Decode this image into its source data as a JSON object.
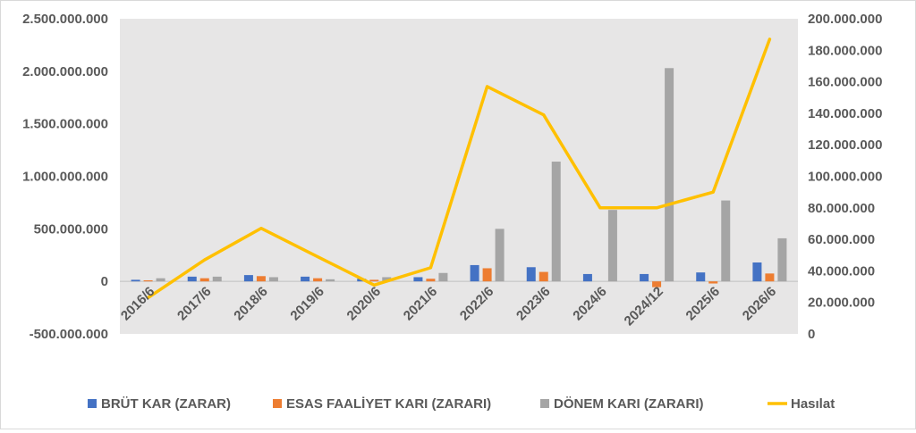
{
  "chart_data": {
    "type": "bar",
    "categories": [
      "2016/6",
      "2017/6",
      "2018/6",
      "2019/6",
      "2020/6",
      "2021/6",
      "2022/6",
      "2023/6",
      "2024/6",
      "2024/12",
      "2025/6",
      "2026/6"
    ],
    "series": [
      {
        "name": "BRÜT KAR (ZARAR)",
        "type": "bar",
        "axis": "left",
        "color": "#4472c4",
        "values": [
          15000000,
          45000000,
          60000000,
          45000000,
          25000000,
          40000000,
          155000000,
          135000000,
          70000000,
          70000000,
          85000000,
          180000000
        ]
      },
      {
        "name": "ESAS FAALİYET KARI (ZARARI)",
        "type": "bar",
        "axis": "left",
        "color": "#ed7d31",
        "values": [
          10000000,
          30000000,
          50000000,
          30000000,
          15000000,
          25000000,
          125000000,
          90000000,
          0,
          -55000000,
          -20000000,
          75000000
        ]
      },
      {
        "name": "DÖNEM KARI (ZARARI)",
        "type": "bar",
        "axis": "left",
        "color": "#a5a5a5",
        "values": [
          30000000,
          45000000,
          40000000,
          20000000,
          40000000,
          80000000,
          500000000,
          1140000000,
          680000000,
          2030000000,
          770000000,
          410000000
        ]
      },
      {
        "name": "Hasılat",
        "type": "line",
        "axis": "right",
        "color": "#ffc000",
        "values": [
          23000000,
          47000000,
          67000000,
          49000000,
          31000000,
          42000000,
          157000000,
          139000000,
          80000000,
          80000000,
          90000000,
          187000000
        ]
      }
    ],
    "y_left": {
      "min": -500000000,
      "max": 2500000000,
      "ticks": [
        "-500.000.000",
        "0",
        "500.000.000",
        "1.000.000.000",
        "1.500.000.000",
        "2.000.000.000",
        "2.500.000.000"
      ]
    },
    "y_right": {
      "min": 0,
      "max": 200000000,
      "ticks": [
        "0",
        "20.000.000",
        "40.000.000",
        "60.000.000",
        "80.000.000",
        "100.000.000",
        "120.000.000",
        "140.000.000",
        "160.000.000",
        "180.000.000",
        "200.000.000"
      ]
    },
    "grid": false,
    "legend_position": "bottom",
    "plot_background": "#e7e6e6"
  }
}
